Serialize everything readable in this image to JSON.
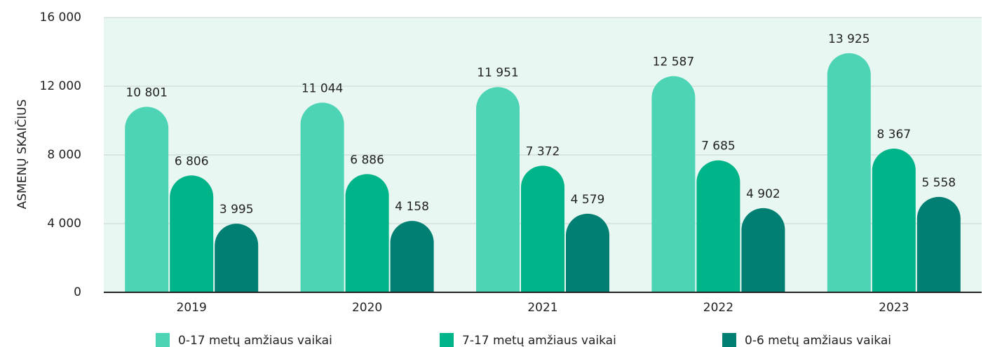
{
  "chart_data": {
    "type": "bar",
    "y_label": "ASMENŲ SKAIČIUS",
    "categories": [
      "2019",
      "2020",
      "2021",
      "2022",
      "2023"
    ],
    "series": [
      {
        "name": "0-17 metų amžiaus vaikai",
        "color": "#4dd4b4",
        "values": [
          10801,
          11044,
          11951,
          12587,
          13925
        ],
        "value_labels": [
          "10 801",
          "11 044",
          "11 951",
          "12 587",
          "13 925"
        ]
      },
      {
        "name": "7-17 metų amžiaus vaikai",
        "color": "#00b48a",
        "values": [
          6806,
          6886,
          7372,
          7685,
          8367
        ],
        "value_labels": [
          "6 806",
          "6 886",
          "7 372",
          "7 685",
          "8 367"
        ]
      },
      {
        "name": "0-6 metų amžiaus vaikai",
        "color": "#007f72",
        "values": [
          3995,
          4158,
          4579,
          4902,
          5558
        ],
        "value_labels": [
          "3 995",
          "4 158",
          "4 579",
          "4 902",
          "5 558"
        ]
      }
    ],
    "ylim": [
      0,
      16000
    ],
    "yticks": [
      {
        "value": 0,
        "label": "0"
      },
      {
        "value": 4000,
        "label": "4 000"
      },
      {
        "value": 8000,
        "label": "8 000"
      },
      {
        "value": 12000,
        "label": "12 000"
      },
      {
        "value": 16000,
        "label": "16 000"
      }
    ],
    "grid": true
  }
}
